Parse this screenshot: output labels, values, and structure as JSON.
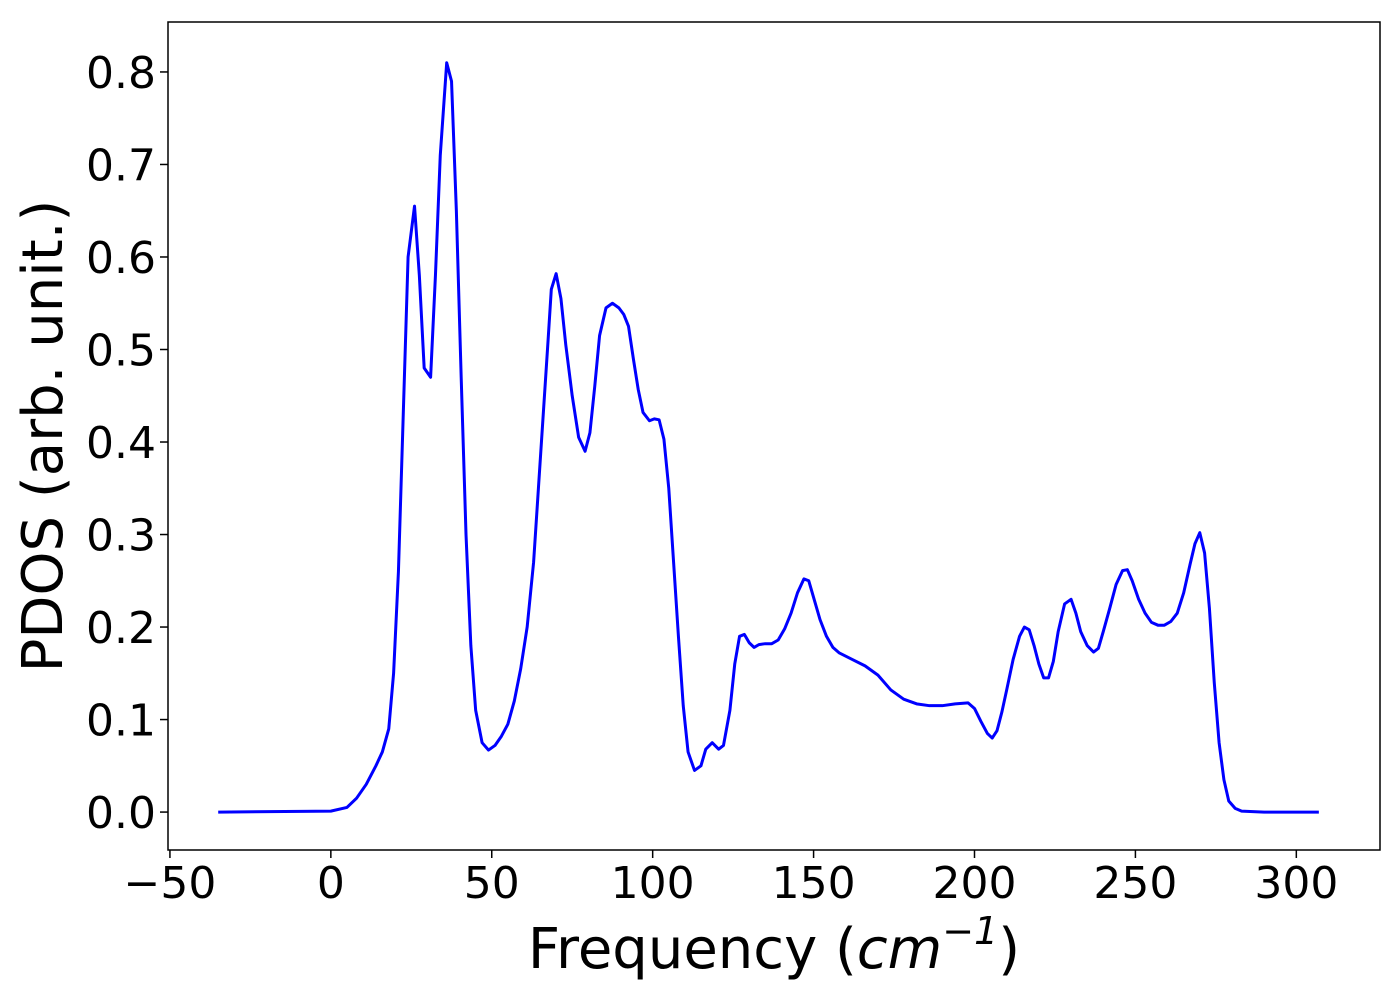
{
  "chart_data": {
    "type": "line",
    "x_label": {
      "text": "Frequency (",
      "unit": "cm",
      "exponent": "−1",
      "close": ")"
    },
    "y_label": "PDOS (arb. unit.)",
    "x": [
      -35,
      0,
      5,
      8,
      11,
      14,
      16,
      18,
      19.5,
      21,
      22.5,
      24,
      26,
      27.5,
      29,
      31,
      32.5,
      34,
      36,
      37.5,
      39,
      40.5,
      42,
      43.5,
      45,
      47,
      49,
      51,
      53,
      55,
      57,
      59,
      61,
      63,
      64.5,
      66,
      67.5,
      68.5,
      70,
      71.5,
      73,
      75,
      77,
      79,
      80.5,
      82,
      83.5,
      85.5,
      87.5,
      89.5,
      91,
      92.5,
      94,
      95.5,
      97,
      99,
      100.5,
      102,
      103.5,
      105,
      106.5,
      108,
      109.5,
      111,
      113,
      115,
      116.5,
      118.5,
      120.5,
      122,
      124,
      125.5,
      127,
      128.5,
      130,
      131.5,
      133,
      135,
      137,
      139,
      141,
      143,
      145,
      147,
      148.5,
      150,
      152,
      154,
      156,
      158,
      162,
      166,
      170,
      174,
      178,
      182,
      186,
      190,
      194,
      198,
      200,
      202,
      204,
      205.5,
      207,
      208.5,
      210,
      212,
      214,
      215.5,
      217,
      218.5,
      220,
      221.5,
      223,
      224.5,
      226,
      228,
      230,
      231.5,
      233,
      235,
      237,
      238.5,
      240,
      242,
      244,
      246,
      247.5,
      249,
      251,
      253,
      255,
      257,
      259,
      261,
      263,
      265,
      267,
      268.5,
      270,
      271.5,
      273,
      274.5,
      276,
      277.5,
      279,
      281,
      283,
      290,
      307
    ],
    "series": [
      {
        "name": "PDOS",
        "color": "#0000ff",
        "values": [
          0,
          0.001,
          0.005,
          0.015,
          0.03,
          0.05,
          0.065,
          0.09,
          0.15,
          0.26,
          0.43,
          0.6,
          0.655,
          0.58,
          0.48,
          0.47,
          0.58,
          0.71,
          0.81,
          0.79,
          0.65,
          0.47,
          0.3,
          0.18,
          0.11,
          0.075,
          0.067,
          0.072,
          0.082,
          0.095,
          0.12,
          0.155,
          0.2,
          0.27,
          0.35,
          0.43,
          0.51,
          0.565,
          0.582,
          0.555,
          0.505,
          0.45,
          0.405,
          0.39,
          0.41,
          0.46,
          0.515,
          0.545,
          0.55,
          0.545,
          0.538,
          0.525,
          0.49,
          0.457,
          0.432,
          0.423,
          0.425,
          0.424,
          0.403,
          0.35,
          0.27,
          0.19,
          0.115,
          0.065,
          0.045,
          0.05,
          0.068,
          0.075,
          0.068,
          0.072,
          0.11,
          0.16,
          0.19,
          0.192,
          0.183,
          0.178,
          0.181,
          0.182,
          0.182,
          0.186,
          0.198,
          0.215,
          0.237,
          0.252,
          0.25,
          0.232,
          0.208,
          0.19,
          0.178,
          0.172,
          0.165,
          0.158,
          0.148,
          0.132,
          0.122,
          0.117,
          0.115,
          0.115,
          0.117,
          0.118,
          0.112,
          0.098,
          0.085,
          0.08,
          0.088,
          0.108,
          0.132,
          0.165,
          0.19,
          0.2,
          0.197,
          0.18,
          0.16,
          0.145,
          0.145,
          0.163,
          0.195,
          0.225,
          0.23,
          0.215,
          0.195,
          0.18,
          0.173,
          0.177,
          0.195,
          0.22,
          0.246,
          0.261,
          0.262,
          0.25,
          0.23,
          0.215,
          0.205,
          0.202,
          0.202,
          0.206,
          0.215,
          0.237,
          0.268,
          0.29,
          0.302,
          0.28,
          0.22,
          0.14,
          0.075,
          0.035,
          0.012,
          0.004,
          0.001,
          0,
          0
        ]
      }
    ],
    "xlim": [
      -50.6,
      326
    ],
    "ylim": [
      -0.041,
      0.854
    ],
    "xticks": [
      {
        "value": -50,
        "label": "−50"
      },
      0,
      50,
      100,
      150,
      200,
      250,
      300
    ],
    "yticks": [
      {
        "value": 0,
        "label": "0.0"
      },
      0.1,
      0.2,
      0.3,
      0.4,
      0.5,
      0.6,
      0.7,
      0.8
    ],
    "grid": false
  }
}
